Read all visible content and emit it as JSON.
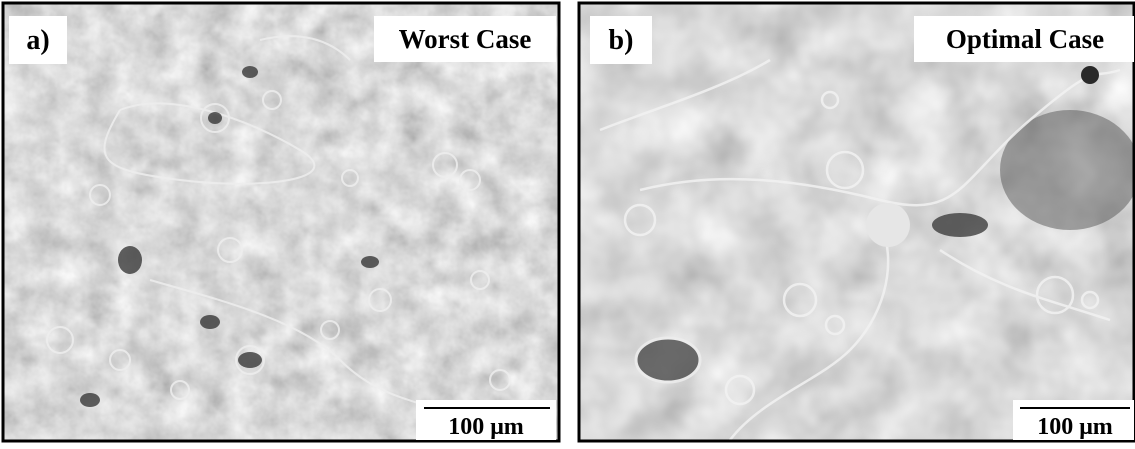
{
  "panels": [
    {
      "label": "a)",
      "caption": "Worst Case",
      "scale_bar": "100 μm"
    },
    {
      "label": "b)",
      "caption": "Optimal Case",
      "scale_bar": "100 μm"
    }
  ]
}
